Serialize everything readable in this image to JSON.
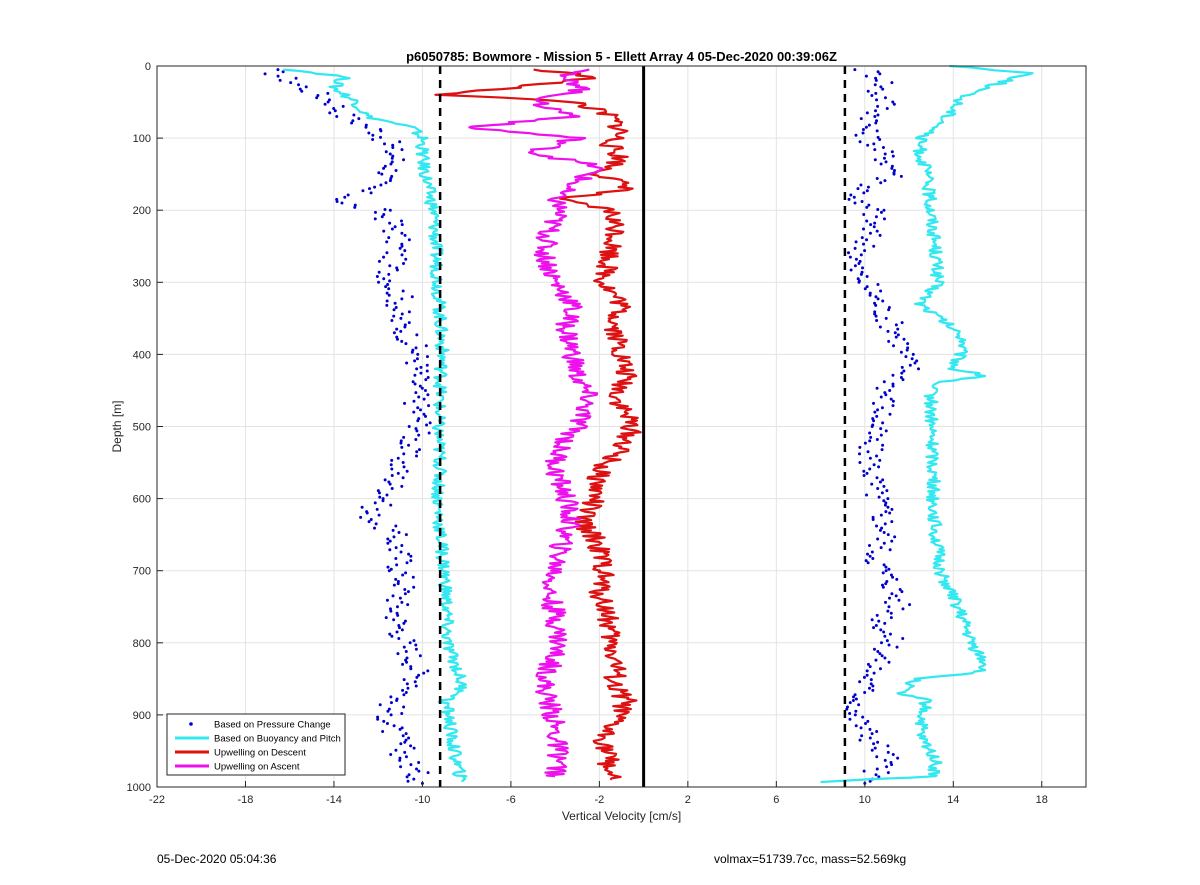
{
  "chart_data": {
    "type": "scatter",
    "title": "p6050785: Bowmore - Mission 5 - Ellett Array 4 05-Dec-2020 00:39:06Z",
    "xlabel": "Vertical Velocity [cm/s]",
    "ylabel": "Depth [m]",
    "xlim": [
      -22,
      20
    ],
    "ylim": [
      0,
      1000
    ],
    "y_reversed": true,
    "grid": true,
    "legend_position": "bottom-left",
    "x_ticks": [
      -22,
      -18,
      -14,
      -10,
      -6,
      -2,
      2,
      6,
      10,
      14,
      18
    ],
    "y_ticks": [
      0,
      100,
      200,
      300,
      400,
      500,
      600,
      700,
      800,
      900,
      1000
    ],
    "reference_lines": [
      {
        "x": -9.2,
        "style": "dashed",
        "color": "#000000"
      },
      {
        "x": 9.1,
        "style": "dashed",
        "color": "#000000"
      },
      {
        "x": 0,
        "style": "solid",
        "color": "#000000"
      }
    ],
    "series": [
      {
        "name": "Based on Pressure Change",
        "style": "points",
        "color": "#0000cc",
        "profiles": [
          {
            "depth": [
              5,
              20,
              35,
              50,
              70,
              90,
              110,
              130,
              150,
              170,
              190,
              200,
              220,
              250,
              280,
              300,
              320,
              350,
              370,
              400,
              420,
              450,
              480,
              500,
              520,
              550,
              580,
              600,
              620,
              650,
              680,
              700,
              720,
              750,
              770,
              800,
              830,
              860,
              880,
              900,
              920,
              940,
              960,
              980,
              995
            ],
            "vel": [
              -17,
              -16,
              -15,
              -14,
              -13.5,
              -12,
              -11.5,
              -11.2,
              -11.5,
              -12.5,
              -13.8,
              -12,
              -11.3,
              -11.1,
              -11.5,
              -11.4,
              -11,
              -11.2,
              -10.7,
              -10.2,
              -10.2,
              -10.3,
              -10.2,
              -10,
              -10.5,
              -11,
              -11.3,
              -11.6,
              -12.5,
              -11.3,
              -11,
              -11,
              -10.8,
              -11.2,
              -11.1,
              -10.8,
              -10.3,
              -10.2,
              -11.3,
              -11.5,
              -11.4,
              -11,
              -10.8,
              -10.3,
              -10
            ]
          },
          {
            "depth": [
              5,
              20,
              35,
              50,
              70,
              90,
              110,
              130,
              150,
              170,
              190,
              200,
              220,
              250,
              280,
              300,
              320,
              350,
              370,
              400,
              420,
              450,
              480,
              500,
              520,
              550,
              580,
              600,
              620,
              650,
              680,
              700,
              720,
              750,
              770,
              800,
              830,
              860,
              880,
              900,
              920,
              940,
              960,
              980,
              995
            ],
            "vel": [
              10,
              11,
              10.5,
              11,
              10.5,
              10,
              10.5,
              11,
              11.5,
              10,
              9.5,
              10.5,
              10.3,
              10,
              9.5,
              10,
              10.5,
              11,
              11.5,
              11.8,
              12,
              11,
              10.8,
              10.5,
              10.2,
              10.3,
              10.4,
              10.6,
              10.8,
              11,
              10.5,
              10.8,
              11.3,
              11.5,
              10.8,
              11.2,
              10.5,
              10,
              9.8,
              9.5,
              10,
              10.5,
              11,
              10.5,
              10
            ]
          }
        ]
      },
      {
        "name": "Based on Buoyancy and Pitch",
        "style": "line",
        "color": "#33e8f0",
        "profiles": [
          {
            "depth": [
              5,
              15,
              30,
              50,
              70,
              85,
              100,
              130,
              160,
              200,
              250,
              300,
              350,
              400,
              450,
              500,
              550,
              600,
              650,
              700,
              750,
              800,
              830,
              850,
              870,
              880,
              900,
              930,
              960,
              985,
              993
            ],
            "vel": [
              -16,
              -13.5,
              -14,
              -13,
              -12.5,
              -10.5,
              -10,
              -10,
              -9.8,
              -9.5,
              -9.4,
              -9.3,
              -9.2,
              -9.1,
              -9.2,
              -9.3,
              -9.2,
              -9.3,
              -9.2,
              -9.0,
              -8.9,
              -8.9,
              -8.5,
              -8.3,
              -8.2,
              -9,
              -8.8,
              -8.7,
              -8.5,
              -8.3,
              -8.2
            ]
          },
          {
            "depth": [
              0,
              10,
              20,
              40,
              60,
              80,
              100,
              120,
              150,
              200,
              250,
              300,
              330,
              360,
              380,
              400,
              420,
              430,
              440,
              500,
              550,
              600,
              650,
              700,
              750,
              800,
              830,
              840,
              850,
              870,
              880,
              900,
              930,
              960,
              985,
              993
            ],
            "vel": [
              14,
              17.5,
              16.5,
              14.5,
              14,
              13.5,
              12.5,
              12.5,
              12.8,
              13,
              13.2,
              13.3,
              12.5,
              13.8,
              14.5,
              14.3,
              14,
              15.5,
              13,
              13,
              13.1,
              13.1,
              13.2,
              13.4,
              14.2,
              14.8,
              15.5,
              15.2,
              12.4,
              11.5,
              12.8,
              12.6,
              12.5,
              13.2,
              13.1,
              8
            ]
          }
        ]
      },
      {
        "name": "Upwelling on Descent",
        "style": "line",
        "color": "#dd1111",
        "profiles": [
          {
            "depth": [
              5,
              15,
              30,
              40,
              50,
              70,
              90,
              110,
              130,
              150,
              170,
              185,
              200,
              230,
              260,
              300,
              330,
              360,
              400,
              430,
              460,
              500,
              530,
              560,
              600,
              630,
              660,
              700,
              730,
              760,
              800,
              830,
              860,
              880,
              900,
              930,
              960,
              990
            ],
            "vel": [
              -5,
              -2,
              -6,
              -9,
              -3,
              -1.5,
              -1,
              -1.5,
              -1,
              -2,
              -0.5,
              -4,
              -1.5,
              -1.2,
              -1.5,
              -1.8,
              -1,
              -1.3,
              -1,
              -0.8,
              -1.2,
              -0.5,
              -1,
              -2,
              -2.2,
              -2.8,
              -2.1,
              -1.8,
              -2,
              -1.6,
              -1.5,
              -1.2,
              -1.4,
              -0.8,
              -1.2,
              -1.8,
              -1.6,
              -1.5
            ]
          }
        ]
      },
      {
        "name": "Upwelling on Ascent",
        "style": "line",
        "color": "#ee11ee",
        "profiles": [
          {
            "depth": [
              5,
              15,
              30,
              50,
              70,
              85,
              100,
              120,
              140,
              160,
              180,
              200,
              230,
              260,
              300,
              330,
              360,
              400,
              430,
              460,
              500,
              530,
              560,
              600,
              630,
              660,
              700,
              730,
              760,
              800,
              830,
              860,
              880,
              900,
              930,
              960,
              985
            ],
            "vel": [
              -2,
              -4,
              -2.5,
              -5,
              -3,
              -8,
              -3,
              -5,
              -2,
              -3,
              -4,
              -3.8,
              -4.3,
              -4.5,
              -4,
              -3.2,
              -3.5,
              -3.2,
              -3,
              -2.5,
              -3,
              -3.8,
              -4,
              -3.5,
              -3.3,
              -3.7,
              -4,
              -4.3,
              -4,
              -3.8,
              -4.2,
              -4.5,
              -4.3,
              -4.1,
              -4,
              -3.8,
              -4
            ]
          }
        ]
      }
    ]
  },
  "footer": {
    "timestamp": "05-Dec-2020 05:04:36",
    "info": "volmax=51739.7cc, mass=52.569kg"
  }
}
